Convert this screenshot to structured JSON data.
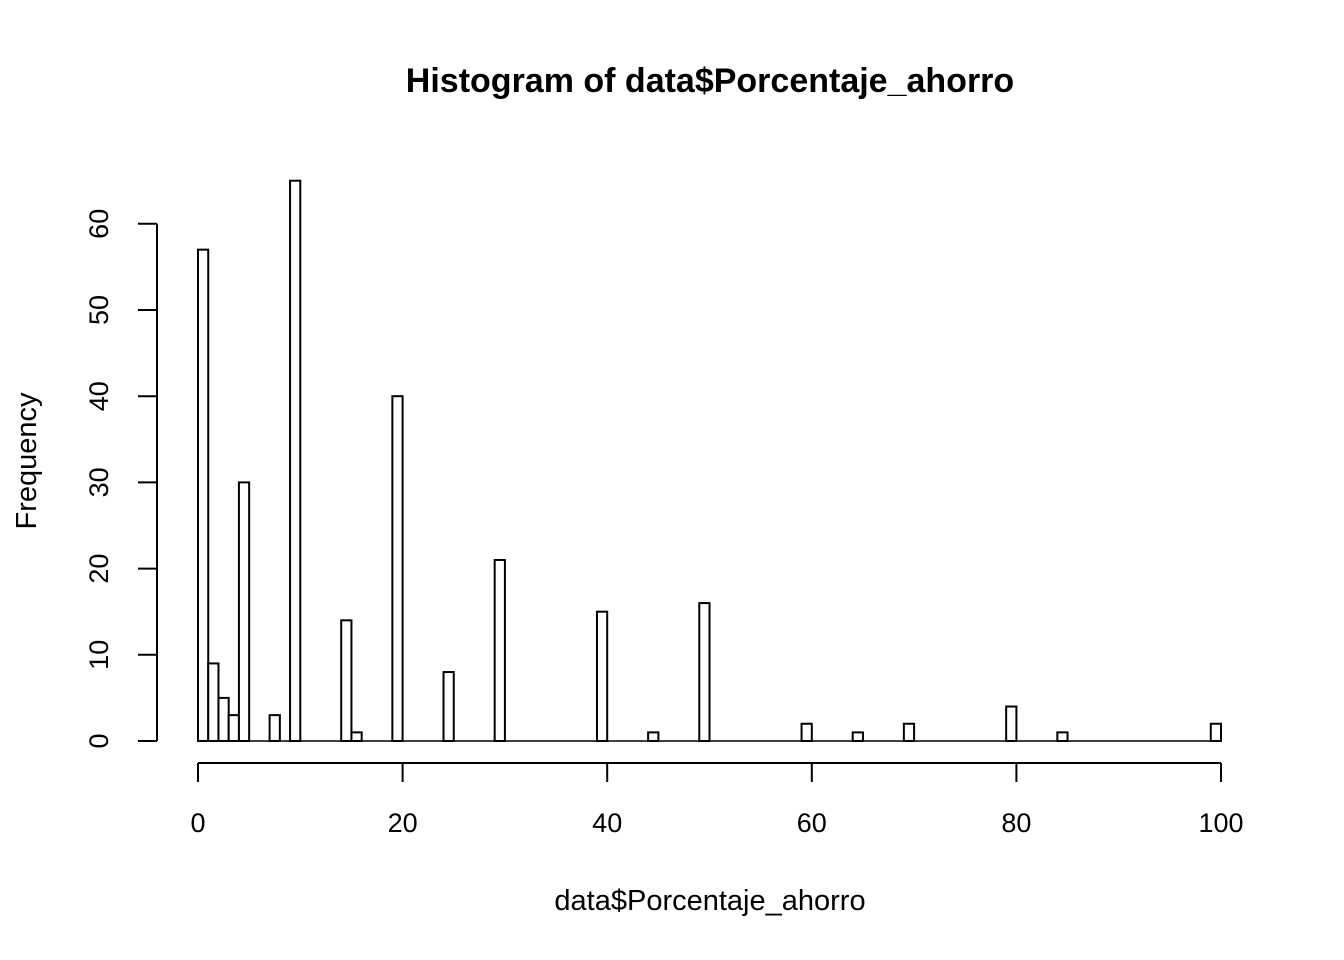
{
  "chart_data": {
    "type": "bar",
    "title": "Histogram of data$Porcentaje_ahorro",
    "xlabel": "data$Porcentaje_ahorro",
    "ylabel": "Frequency",
    "xlim": [
      0,
      100
    ],
    "ylim": [
      0,
      65
    ],
    "bin_width": 1,
    "x_ticks": [
      "0",
      "20",
      "40",
      "60",
      "80",
      "100"
    ],
    "y_ticks": [
      "0",
      "10",
      "20",
      "30",
      "40",
      "50",
      "60"
    ],
    "bars": [
      {
        "x0": 0,
        "x1": 1,
        "value": 57
      },
      {
        "x0": 1,
        "x1": 2,
        "value": 9
      },
      {
        "x0": 2,
        "x1": 3,
        "value": 5
      },
      {
        "x0": 3,
        "x1": 4,
        "value": 3
      },
      {
        "x0": 4,
        "x1": 5,
        "value": 30
      },
      {
        "x0": 7,
        "x1": 8,
        "value": 3
      },
      {
        "x0": 9,
        "x1": 10,
        "value": 65
      },
      {
        "x0": 14,
        "x1": 15,
        "value": 14
      },
      {
        "x0": 15,
        "x1": 16,
        "value": 1
      },
      {
        "x0": 19,
        "x1": 20,
        "value": 40
      },
      {
        "x0": 24,
        "x1": 25,
        "value": 8
      },
      {
        "x0": 29,
        "x1": 30,
        "value": 21
      },
      {
        "x0": 39,
        "x1": 40,
        "value": 15
      },
      {
        "x0": 44,
        "x1": 45,
        "value": 1
      },
      {
        "x0": 49,
        "x1": 50,
        "value": 16
      },
      {
        "x0": 59,
        "x1": 60,
        "value": 2
      },
      {
        "x0": 64,
        "x1": 65,
        "value": 1
      },
      {
        "x0": 69,
        "x1": 70,
        "value": 2
      },
      {
        "x0": 79,
        "x1": 80,
        "value": 4
      },
      {
        "x0": 84,
        "x1": 85,
        "value": 1
      },
      {
        "x0": 99,
        "x1": 100,
        "value": 2
      }
    ],
    "colors": {
      "bar_fill": "#ffffff",
      "bar_stroke": "#000000"
    },
    "grid": false
  }
}
